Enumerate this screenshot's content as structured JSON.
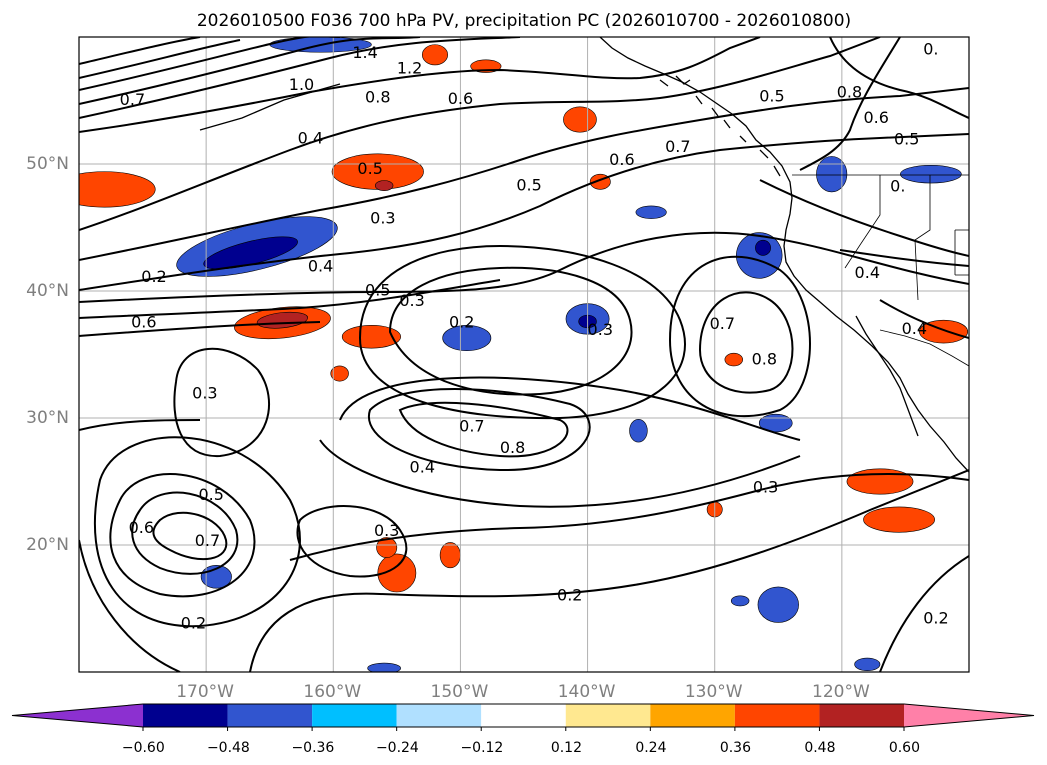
{
  "title": "2026010500 F036 700 hPa PV, precipitation PC (2026010700 - 2026010800)",
  "map": {
    "lon_range": [
      -180,
      -110
    ],
    "lat_range": [
      10,
      60
    ],
    "lon_ticks": [
      {
        "value": -170,
        "label": "170°W"
      },
      {
        "value": -160,
        "label": "160°W"
      },
      {
        "value": -150,
        "label": "150°W"
      },
      {
        "value": -140,
        "label": "140°W"
      },
      {
        "value": -130,
        "label": "130°W"
      },
      {
        "value": -120,
        "label": "120°W"
      }
    ],
    "lat_ticks": [
      {
        "value": 20,
        "label": "20°N"
      },
      {
        "value": 30,
        "label": "30°N"
      },
      {
        "value": 40,
        "label": "40°N"
      },
      {
        "value": 50,
        "label": "50°N"
      }
    ],
    "grid": true
  },
  "pv_contour_labels": [
    {
      "text": "1.4",
      "lon": -157.5,
      "lat": 58.8
    },
    {
      "text": "1.2",
      "lon": -154.0,
      "lat": 57.6
    },
    {
      "text": "1.0",
      "lon": -162.5,
      "lat": 56.3
    },
    {
      "text": "0.8",
      "lon": -156.5,
      "lat": 55.3
    },
    {
      "text": "0.6",
      "lon": -150.0,
      "lat": 55.2
    },
    {
      "text": "0.7",
      "lon": -175.8,
      "lat": 55.1
    },
    {
      "text": "0.4",
      "lon": -161.8,
      "lat": 52.1
    },
    {
      "text": "0.5",
      "lon": -157.1,
      "lat": 49.7
    },
    {
      "text": "0.6",
      "lon": -137.3,
      "lat": 50.4
    },
    {
      "text": "0.7",
      "lon": -132.9,
      "lat": 51.4
    },
    {
      "text": "0.5",
      "lon": -125.5,
      "lat": 55.4
    },
    {
      "text": "0.8",
      "lon": -119.4,
      "lat": 55.7
    },
    {
      "text": "0.6",
      "lon": -117.3,
      "lat": 53.7
    },
    {
      "text": "0.5",
      "lon": -114.9,
      "lat": 52.0
    },
    {
      "text": "0.",
      "lon": -115.6,
      "lat": 48.3
    },
    {
      "text": "0.",
      "lon": -113.0,
      "lat": 59.1
    },
    {
      "text": "0.5",
      "lon": -144.6,
      "lat": 48.4
    },
    {
      "text": "0.3",
      "lon": -156.1,
      "lat": 45.8
    },
    {
      "text": "0.4",
      "lon": -161.0,
      "lat": 42.0
    },
    {
      "text": "0.2",
      "lon": -174.1,
      "lat": 41.2
    },
    {
      "text": "0.5",
      "lon": -156.5,
      "lat": 40.1
    },
    {
      "text": "0.3",
      "lon": -153.8,
      "lat": 39.3
    },
    {
      "text": "0.6",
      "lon": -174.9,
      "lat": 37.6
    },
    {
      "text": "0.2",
      "lon": -149.9,
      "lat": 37.6
    },
    {
      "text": "0.3",
      "lon": -139.0,
      "lat": 37.0
    },
    {
      "text": "0.7",
      "lon": -129.4,
      "lat": 37.5
    },
    {
      "text": "0.8",
      "lon": -126.1,
      "lat": 34.7
    },
    {
      "text": "0.4",
      "lon": -118.0,
      "lat": 41.5
    },
    {
      "text": "0.4",
      "lon": -114.3,
      "lat": 37.1
    },
    {
      "text": "0.3",
      "lon": -170.1,
      "lat": 32.0
    },
    {
      "text": "0.7",
      "lon": -149.1,
      "lat": 29.4
    },
    {
      "text": "0.8",
      "lon": -145.9,
      "lat": 27.7
    },
    {
      "text": "0.4",
      "lon": -153.0,
      "lat": 26.2
    },
    {
      "text": "0.5",
      "lon": -169.6,
      "lat": 24.0
    },
    {
      "text": "0.6",
      "lon": -175.1,
      "lat": 21.4
    },
    {
      "text": "0.7",
      "lon": -169.9,
      "lat": 20.4
    },
    {
      "text": "0.3",
      "lon": -155.8,
      "lat": 21.2
    },
    {
      "text": "0.2",
      "lon": -141.4,
      "lat": 16.1
    },
    {
      "text": "0.3",
      "lon": -126.0,
      "lat": 24.6
    },
    {
      "text": "0.2",
      "lon": -171.0,
      "lat": 13.9
    },
    {
      "text": "0.2",
      "lon": -112.6,
      "lat": 14.3
    }
  ],
  "colorbar": {
    "bounds": [
      -0.72,
      -0.6,
      -0.48,
      -0.36,
      -0.24,
      -0.12,
      0.12,
      0.24,
      0.36,
      0.48,
      0.6,
      0.72
    ],
    "colors": [
      "#8c30d0",
      "#00008f",
      "#3155cf",
      "#00bfff",
      "#b0e0ff",
      "#ffffff",
      "#ffe890",
      "#ffa500",
      "#ff4500",
      "#b22222",
      "#ff80a8"
    ],
    "extend": "both",
    "tick_labels": [
      "−0.60",
      "−0.48",
      "−0.36",
      "−0.24",
      "−0.12",
      "0.12",
      "0.24",
      "0.36",
      "0.48",
      "0.60"
    ],
    "tick_values": [
      -0.6,
      -0.48,
      -0.36,
      -0.24,
      -0.12,
      0.12,
      0.24,
      0.36,
      0.48,
      0.6
    ]
  },
  "precip_patches": [
    {
      "lon": -178.0,
      "lat": 48.0,
      "rlon": 4.0,
      "rlat": 1.4,
      "bin": 8,
      "angle": 0
    },
    {
      "lon": -166.0,
      "lat": 43.5,
      "rlon": 6.5,
      "rlat": 1.8,
      "bin": 2,
      "angle": -14
    },
    {
      "lon": -166.5,
      "lat": 43.0,
      "rlon": 3.8,
      "rlat": 0.9,
      "bin": 1,
      "angle": -14
    },
    {
      "lon": -164.0,
      "lat": 37.5,
      "rlon": 3.8,
      "rlat": 1.2,
      "bin": 8,
      "angle": -6
    },
    {
      "lon": -164.0,
      "lat": 37.7,
      "rlon": 2.0,
      "rlat": 0.6,
      "bin": 9,
      "angle": -6
    },
    {
      "lon": -156.5,
      "lat": 49.4,
      "rlon": 3.6,
      "rlat": 1.4,
      "bin": 8,
      "angle": 0
    },
    {
      "lon": -156.0,
      "lat": 48.3,
      "rlon": 0.7,
      "rlat": 0.4,
      "bin": 9,
      "angle": 0
    },
    {
      "lon": -157.0,
      "lat": 36.4,
      "rlon": 2.3,
      "rlat": 0.9,
      "bin": 8,
      "angle": 0
    },
    {
      "lon": -149.5,
      "lat": 36.3,
      "rlon": 1.9,
      "rlat": 1.0,
      "bin": 2,
      "angle": 0
    },
    {
      "lon": -140.0,
      "lat": 37.8,
      "rlon": 1.7,
      "rlat": 1.2,
      "bin": 2,
      "angle": 0
    },
    {
      "lon": -140.0,
      "lat": 37.6,
      "rlon": 0.7,
      "rlat": 0.5,
      "bin": 1,
      "angle": 0
    },
    {
      "lon": -126.5,
      "lat": 42.8,
      "rlon": 1.8,
      "rlat": 1.8,
      "bin": 2,
      "angle": -35
    },
    {
      "lon": -126.2,
      "lat": 43.4,
      "rlon": 0.6,
      "rlat": 0.6,
      "bin": 1,
      "angle": 0
    },
    {
      "lon": -120.8,
      "lat": 49.2,
      "rlon": 1.2,
      "rlat": 1.4,
      "bin": 2,
      "angle": 0
    },
    {
      "lon": -113.0,
      "lat": 49.2,
      "rlon": 2.4,
      "rlat": 0.7,
      "bin": 2,
      "angle": 0
    },
    {
      "lon": -140.6,
      "lat": 53.5,
      "rlon": 1.3,
      "rlat": 1.0,
      "bin": 8,
      "angle": 0
    },
    {
      "lon": -139.0,
      "lat": 48.6,
      "rlon": 0.8,
      "rlat": 0.6,
      "bin": 8,
      "angle": 0
    },
    {
      "lon": -135.0,
      "lat": 46.2,
      "rlon": 1.2,
      "rlat": 0.5,
      "bin": 2,
      "angle": 0
    },
    {
      "lon": -152.0,
      "lat": 58.6,
      "rlon": 1.0,
      "rlat": 0.8,
      "bin": 8,
      "angle": 0
    },
    {
      "lon": -148.0,
      "lat": 57.7,
      "rlon": 1.2,
      "rlat": 0.5,
      "bin": 8,
      "angle": 0
    },
    {
      "lon": -161.0,
      "lat": 59.4,
      "rlon": 4.0,
      "rlat": 0.6,
      "bin": 2,
      "angle": 0
    },
    {
      "lon": -128.5,
      "lat": 34.6,
      "rlon": 0.7,
      "rlat": 0.5,
      "bin": 8,
      "angle": 0
    },
    {
      "lon": -155.0,
      "lat": 17.8,
      "rlon": 1.5,
      "rlat": 1.5,
      "bin": 8,
      "angle": 0
    },
    {
      "lon": -155.8,
      "lat": 19.8,
      "rlon": 0.8,
      "rlat": 0.8,
      "bin": 8,
      "angle": 0
    },
    {
      "lon": -150.8,
      "lat": 19.2,
      "rlon": 0.8,
      "rlat": 1.0,
      "bin": 8,
      "angle": 0
    },
    {
      "lon": -159.5,
      "lat": 33.5,
      "rlon": 0.7,
      "rlat": 0.6,
      "bin": 8,
      "angle": 0
    },
    {
      "lon": -117.0,
      "lat": 25.0,
      "rlon": 2.6,
      "rlat": 1.0,
      "bin": 8,
      "angle": 0
    },
    {
      "lon": -115.5,
      "lat": 22.0,
      "rlon": 2.8,
      "rlat": 1.0,
      "bin": 8,
      "angle": 0
    },
    {
      "lon": -112.0,
      "lat": 36.8,
      "rlon": 1.9,
      "rlat": 0.9,
      "bin": 8,
      "angle": 0
    },
    {
      "lon": -125.0,
      "lat": 15.3,
      "rlon": 1.6,
      "rlat": 1.4,
      "bin": 2,
      "angle": 0
    },
    {
      "lon": -128.0,
      "lat": 15.6,
      "rlon": 0.7,
      "rlat": 0.4,
      "bin": 2,
      "angle": 0
    },
    {
      "lon": -118.0,
      "lat": 10.6,
      "rlon": 1.0,
      "rlat": 0.5,
      "bin": 2,
      "angle": 0
    },
    {
      "lon": -125.2,
      "lat": 29.6,
      "rlon": 1.3,
      "rlat": 0.7,
      "bin": 2,
      "angle": 0
    },
    {
      "lon": -136.0,
      "lat": 29.0,
      "rlon": 0.7,
      "rlat": 0.9,
      "bin": 2,
      "angle": 0
    },
    {
      "lon": -169.2,
      "lat": 17.5,
      "rlon": 1.2,
      "rlat": 0.9,
      "bin": 2,
      "angle": 0
    },
    {
      "lon": -156.0,
      "lat": 10.3,
      "rlon": 1.3,
      "rlat": 0.4,
      "bin": 2,
      "angle": 0
    },
    {
      "lon": -130.0,
      "lat": 22.8,
      "rlon": 0.6,
      "rlat": 0.6,
      "bin": 8,
      "angle": 0
    }
  ]
}
